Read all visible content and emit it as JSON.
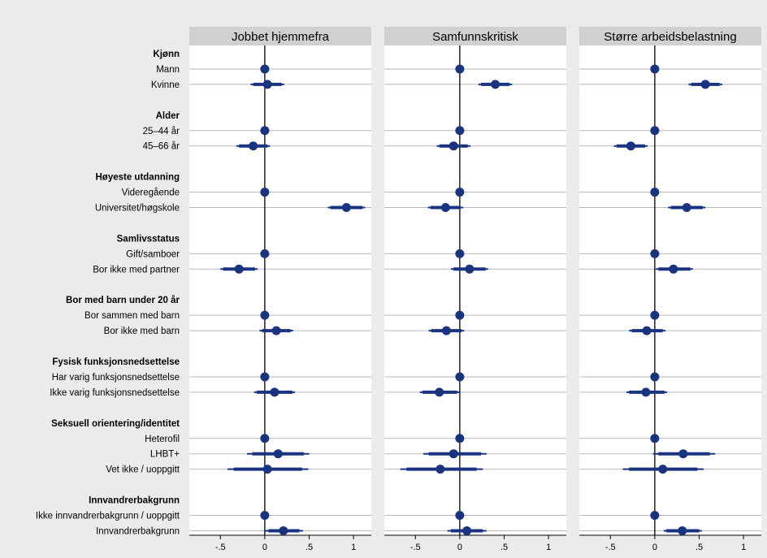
{
  "chart_data": {
    "type": "scatter",
    "subtype": "coefficient plot",
    "panels": [
      {
        "title": "Jobbet hjemmefra"
      },
      {
        "title": "Samfunnskritisk"
      },
      {
        "title": "Større arbeidsbelastning"
      }
    ],
    "xlim": [
      -0.85,
      1.2
    ],
    "xticks": [
      -0.5,
      0,
      0.5,
      1
    ],
    "xtick_labels": [
      "-.5",
      "0",
      ".5",
      "1"
    ],
    "groups": [
      {
        "label": "Kjønn",
        "rows": [
          {
            "label": "Mann",
            "values": [
              {
                "est": 0,
                "ci": [
                  0,
                  0
                ],
                "ci90": [
                  0,
                  0
                ]
              },
              {
                "est": 0,
                "ci": [
                  0,
                  0
                ],
                "ci90": [
                  0,
                  0
                ]
              },
              {
                "est": 0,
                "ci": [
                  0,
                  0
                ],
                "ci90": [
                  0,
                  0
                ]
              }
            ]
          },
          {
            "label": "Kvinne",
            "values": [
              {
                "est": 0.03,
                "ci": [
                  -0.16,
                  0.22
                ],
                "ci90": [
                  -0.13,
                  0.19
                ]
              },
              {
                "est": 0.4,
                "ci": [
                  0.21,
                  0.59
                ],
                "ci90": [
                  0.24,
                  0.56
                ]
              },
              {
                "est": 0.57,
                "ci": [
                  0.38,
                  0.76
                ],
                "ci90": [
                  0.41,
                  0.73
                ]
              }
            ]
          }
        ]
      },
      {
        "label": "Alder",
        "rows": [
          {
            "label": "25–44 år",
            "values": [
              {
                "est": 0,
                "ci": [
                  0,
                  0
                ],
                "ci90": [
                  0,
                  0
                ]
              },
              {
                "est": 0,
                "ci": [
                  0,
                  0
                ],
                "ci90": [
                  0,
                  0
                ]
              },
              {
                "est": 0,
                "ci": [
                  0,
                  0
                ],
                "ci90": [
                  0,
                  0
                ]
              }
            ]
          },
          {
            "label": "45–66 år",
            "values": [
              {
                "est": -0.13,
                "ci": [
                  -0.32,
                  0.06
                ],
                "ci90": [
                  -0.29,
                  0.03
                ]
              },
              {
                "est": -0.07,
                "ci": [
                  -0.26,
                  0.12
                ],
                "ci90": [
                  -0.23,
                  0.09
                ]
              },
              {
                "est": -0.27,
                "ci": [
                  -0.46,
                  -0.08
                ],
                "ci90": [
                  -0.43,
                  -0.11
                ]
              }
            ]
          }
        ]
      },
      {
        "label": "Høyeste utdanning",
        "rows": [
          {
            "label": "Videregående",
            "values": [
              {
                "est": 0,
                "ci": [
                  0,
                  0
                ],
                "ci90": [
                  0,
                  0
                ]
              },
              {
                "est": 0,
                "ci": [
                  0,
                  0
                ],
                "ci90": [
                  0,
                  0
                ]
              },
              {
                "est": 0,
                "ci": [
                  0,
                  0
                ],
                "ci90": [
                  0,
                  0
                ]
              }
            ]
          },
          {
            "label": "Universitet/høgskole",
            "values": [
              {
                "est": 0.92,
                "ci": [
                  0.71,
                  1.13
                ],
                "ci90": [
                  0.74,
                  1.1
                ]
              },
              {
                "est": -0.16,
                "ci": [
                  -0.36,
                  0.04
                ],
                "ci90": [
                  -0.33,
                  0.01
                ]
              },
              {
                "est": 0.36,
                "ci": [
                  0.15,
                  0.57
                ],
                "ci90": [
                  0.18,
                  0.54
                ]
              }
            ]
          }
        ]
      },
      {
        "label": "Samlivsstatus",
        "rows": [
          {
            "label": "Gift/samboer",
            "values": [
              {
                "est": 0,
                "ci": [
                  0,
                  0
                ],
                "ci90": [
                  0,
                  0
                ]
              },
              {
                "est": 0,
                "ci": [
                  0,
                  0
                ],
                "ci90": [
                  0,
                  0
                ]
              },
              {
                "est": 0,
                "ci": [
                  0,
                  0
                ],
                "ci90": [
                  0,
                  0
                ]
              }
            ]
          },
          {
            "label": "Bor ikke med partner",
            "values": [
              {
                "est": -0.29,
                "ci": [
                  -0.5,
                  -0.08
                ],
                "ci90": [
                  -0.47,
                  -0.11
                ]
              },
              {
                "est": 0.11,
                "ci": [
                  -0.1,
                  0.32
                ],
                "ci90": [
                  -0.07,
                  0.29
                ]
              },
              {
                "est": 0.21,
                "ci": [
                  0.01,
                  0.43
                ],
                "ci90": [
                  0.04,
                  0.4
                ]
              }
            ]
          }
        ]
      },
      {
        "label": "Bor med barn under 20 år",
        "rows": [
          {
            "label": "Bor sammen med barn",
            "values": [
              {
                "est": 0,
                "ci": [
                  0,
                  0
                ],
                "ci90": [
                  0,
                  0
                ]
              },
              {
                "est": 0,
                "ci": [
                  0,
                  0
                ],
                "ci90": [
                  0,
                  0
                ]
              },
              {
                "est": 0,
                "ci": [
                  0,
                  0
                ],
                "ci90": [
                  0,
                  0
                ]
              }
            ]
          },
          {
            "label": "Bor ikke med barn",
            "values": [
              {
                "est": 0.13,
                "ci": [
                  -0.06,
                  0.32
                ],
                "ci90": [
                  -0.03,
                  0.29
                ]
              },
              {
                "est": -0.15,
                "ci": [
                  -0.35,
                  0.05
                ],
                "ci90": [
                  -0.32,
                  0.02
                ]
              },
              {
                "est": -0.09,
                "ci": [
                  -0.29,
                  0.12
                ],
                "ci90": [
                  -0.26,
                  0.09
                ]
              }
            ]
          }
        ]
      },
      {
        "label": "Fysisk funksjonsnedsettelse",
        "rows": [
          {
            "label": "Har varig funksjonsnedsettelse",
            "values": [
              {
                "est": 0,
                "ci": [
                  0,
                  0
                ],
                "ci90": [
                  0,
                  0
                ]
              },
              {
                "est": 0,
                "ci": [
                  0,
                  0
                ],
                "ci90": [
                  0,
                  0
                ]
              },
              {
                "est": 0,
                "ci": [
                  0,
                  0
                ],
                "ci90": [
                  0,
                  0
                ]
              }
            ]
          },
          {
            "label": "Ikke varig funksjonsnedsettelse",
            "values": [
              {
                "est": 0.11,
                "ci": [
                  -0.12,
                  0.34
                ],
                "ci90": [
                  -0.09,
                  0.31
                ]
              },
              {
                "est": -0.23,
                "ci": [
                  -0.45,
                  0.0
                ],
                "ci90": [
                  -0.42,
                  -0.03
                ]
              },
              {
                "est": -0.1,
                "ci": [
                  -0.32,
                  0.14
                ],
                "ci90": [
                  -0.29,
                  0.11
                ]
              }
            ]
          }
        ]
      },
      {
        "label": "Seksuell orientering/identitet",
        "rows": [
          {
            "label": "Heterofil",
            "values": [
              {
                "est": 0,
                "ci": [
                  0,
                  0
                ],
                "ci90": [
                  0,
                  0
                ]
              },
              {
                "est": 0,
                "ci": [
                  0,
                  0
                ],
                "ci90": [
                  0,
                  0
                ]
              },
              {
                "est": 0,
                "ci": [
                  0,
                  0
                ],
                "ci90": [
                  0,
                  0
                ]
              }
            ]
          },
          {
            "label": "LHBT+",
            "values": [
              {
                "est": 0.15,
                "ci": [
                  -0.2,
                  0.5
                ],
                "ci90": [
                  -0.14,
                  0.44
                ]
              },
              {
                "est": -0.07,
                "ci": [
                  -0.41,
                  0.3
                ],
                "ci90": [
                  -0.35,
                  0.24
                ]
              },
              {
                "est": 0.32,
                "ci": [
                  -0.02,
                  0.68
                ],
                "ci90": [
                  0.04,
                  0.62
                ]
              }
            ]
          },
          {
            "label": "Vet ikke / uoppgitt",
            "values": [
              {
                "est": 0.03,
                "ci": [
                  -0.42,
                  0.49
                ],
                "ci90": [
                  -0.35,
                  0.42
                ]
              },
              {
                "est": -0.22,
                "ci": [
                  -0.67,
                  0.26
                ],
                "ci90": [
                  -0.6,
                  0.19
                ]
              },
              {
                "est": 0.09,
                "ci": [
                  -0.36,
                  0.55
                ],
                "ci90": [
                  -0.29,
                  0.48
                ]
              }
            ]
          }
        ]
      },
      {
        "label": "Innvandrerbakgrunn",
        "rows": [
          {
            "label": "Ikke innvandrerbakgrunn / uoppgitt",
            "values": [
              {
                "est": 0,
                "ci": [
                  0,
                  0
                ],
                "ci90": [
                  0,
                  0
                ]
              },
              {
                "est": 0,
                "ci": [
                  0,
                  0
                ],
                "ci90": [
                  0,
                  0
                ]
              },
              {
                "est": 0,
                "ci": [
                  0,
                  0
                ],
                "ci90": [
                  0,
                  0
                ]
              }
            ]
          },
          {
            "label": "Innvandrerbakgrunn",
            "values": [
              {
                "est": 0.21,
                "ci": [
                  0.0,
                  0.43
                ],
                "ci90": [
                  0.04,
                  0.39
                ]
              },
              {
                "est": 0.08,
                "ci": [
                  -0.14,
                  0.3
                ],
                "ci90": [
                  -0.1,
                  0.26
                ]
              },
              {
                "est": 0.31,
                "ci": [
                  0.1,
                  0.53
                ],
                "ci90": [
                  0.13,
                  0.5
                ]
              }
            ]
          }
        ]
      }
    ],
    "colors": {
      "background": "#ebebeb",
      "plot_area": "#ffffff",
      "panel_header": "#d0d0d0",
      "marker": "#1a3380",
      "ci_line": "#1a3380",
      "gridline": "#b7b7b7",
      "zero_line": "#000000"
    },
    "grid": true,
    "legend": "none"
  }
}
